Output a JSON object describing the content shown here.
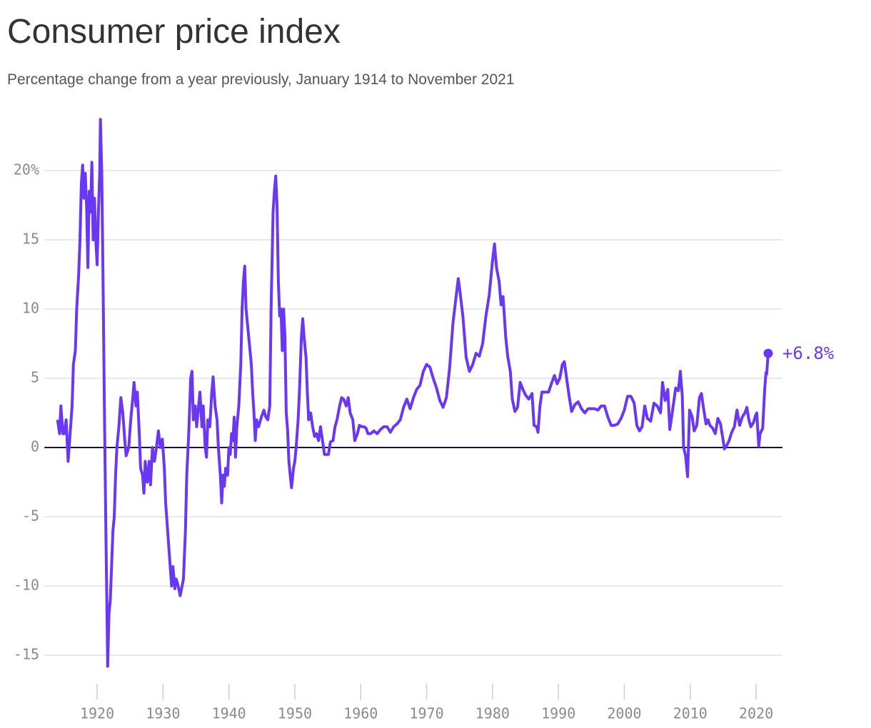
{
  "chart_data": {
    "type": "line",
    "title": "Consumer price index",
    "subtitle": "Percentage change from a year previously, January 1914 to November 2021",
    "end_label": "+6.8%",
    "color": "#6a38f2",
    "grid": true,
    "xlim": [
      1912,
      2024
    ],
    "xticks": [
      1920,
      1930,
      1940,
      1950,
      1960,
      1970,
      1980,
      1990,
      2000,
      2010,
      2020
    ],
    "ylim": [
      -17,
      24
    ],
    "yticks": [
      {
        "value": 20,
        "label": "20%"
      },
      15,
      10,
      5,
      0,
      -5,
      -10,
      -15
    ],
    "x": [
      1914.0,
      1914.3,
      1914.5,
      1914.8,
      1915.0,
      1915.3,
      1915.6,
      1915.9,
      1916.2,
      1916.4,
      1916.7,
      1916.9,
      1917.2,
      1917.4,
      1917.6,
      1917.8,
      1918.0,
      1918.2,
      1918.4,
      1918.6,
      1918.8,
      1919.0,
      1919.2,
      1919.4,
      1919.6,
      1919.8,
      1920.0,
      1920.2,
      1920.4,
      1920.5,
      1920.7,
      1920.9,
      1921.1,
      1921.3,
      1921.5,
      1921.6,
      1921.8,
      1922.0,
      1922.2,
      1922.4,
      1922.6,
      1922.8,
      1923.0,
      1923.3,
      1923.6,
      1923.9,
      1924.2,
      1924.4,
      1924.8,
      1925.1,
      1925.4,
      1925.6,
      1925.9,
      1926.1,
      1926.4,
      1926.6,
      1926.9,
      1927.1,
      1927.3,
      1927.6,
      1927.9,
      1928.1,
      1928.4,
      1928.7,
      1929.0,
      1929.3,
      1929.6,
      1929.9,
      1930.2,
      1930.4,
      1930.7,
      1931.0,
      1931.3,
      1931.5,
      1931.8,
      1932.0,
      1932.3,
      1932.6,
      1932.9,
      1933.1,
      1933.4,
      1933.6,
      1933.9,
      1934.2,
      1934.4,
      1934.6,
      1934.9,
      1935.1,
      1935.4,
      1935.6,
      1935.9,
      1936.1,
      1936.4,
      1936.6,
      1936.8,
      1937.1,
      1937.4,
      1937.6,
      1937.9,
      1938.2,
      1938.4,
      1938.7,
      1938.9,
      1939.1,
      1939.3,
      1939.5,
      1939.8,
      1940.0,
      1940.2,
      1940.4,
      1940.6,
      1940.8,
      1941.0,
      1941.2,
      1941.5,
      1941.8,
      1942.0,
      1942.2,
      1942.4,
      1942.6,
      1942.8,
      1943.0,
      1943.2,
      1943.4,
      1943.6,
      1943.8,
      1944.0,
      1944.2,
      1944.5,
      1944.8,
      1945.0,
      1945.3,
      1945.6,
      1945.9,
      1946.2,
      1946.4,
      1946.7,
      1946.9,
      1947.1,
      1947.3,
      1947.5,
      1947.7,
      1947.9,
      1948.1,
      1948.3,
      1948.5,
      1948.7,
      1948.9,
      1949.1,
      1949.3,
      1949.5,
      1949.8,
      1950.0,
      1950.2,
      1950.5,
      1950.7,
      1951.0,
      1951.2,
      1951.4,
      1951.7,
      1951.9,
      1952.1,
      1952.4,
      1952.7,
      1953.0,
      1953.3,
      1953.6,
      1953.9,
      1954.2,
      1954.5,
      1954.8,
      1955.1,
      1955.4,
      1955.8,
      1956.1,
      1956.4,
      1956.8,
      1957.1,
      1957.4,
      1957.8,
      1958.1,
      1958.4,
      1958.8,
      1959.1,
      1959.5,
      1959.8,
      1960.2,
      1960.5,
      1960.8,
      1961.1,
      1961.5,
      1962.0,
      1962.5,
      1963.0,
      1963.5,
      1964.0,
      1964.5,
      1965.0,
      1965.5,
      1966.0,
      1966.5,
      1967.0,
      1967.5,
      1968.0,
      1968.5,
      1969.0,
      1969.5,
      1970.0,
      1970.5,
      1971.0,
      1971.5,
      1972.0,
      1972.5,
      1973.0,
      1973.5,
      1974.0,
      1974.5,
      1974.8,
      1975.0,
      1975.5,
      1976.0,
      1976.5,
      1977.0,
      1977.5,
      1978.0,
      1978.5,
      1979.0,
      1979.5,
      1980.0,
      1980.3,
      1980.6,
      1981.0,
      1981.3,
      1981.6,
      1982.0,
      1982.3,
      1982.7,
      1983.0,
      1983.4,
      1983.8,
      1984.2,
      1984.6,
      1985.0,
      1985.5,
      1986.0,
      1986.3,
      1986.7,
      1986.9,
      1987.2,
      1987.5,
      1988.0,
      1988.5,
      1989.0,
      1989.4,
      1989.8,
      1990.2,
      1990.6,
      1990.9,
      1991.3,
      1991.6,
      1992.0,
      1992.5,
      1993.0,
      1993.5,
      1994.0,
      1994.5,
      1995.0,
      1995.5,
      1996.0,
      1996.5,
      1997.0,
      1997.5,
      1998.0,
      1998.5,
      1999.0,
      1999.5,
      2000.0,
      2000.5,
      2001.0,
      2001.5,
      2001.9,
      2002.3,
      2002.7,
      2003.1,
      2003.5,
      2004.0,
      2004.5,
      2005.0,
      2005.5,
      2005.8,
      2006.2,
      2006.6,
      2006.9,
      2007.3,
      2007.8,
      2008.2,
      2008.5,
      2008.8,
      2009.0,
      2009.3,
      2009.6,
      2009.9,
      2010.3,
      2010.6,
      2011.0,
      2011.4,
      2011.7,
      2012.0,
      2012.4,
      2012.7,
      2013.0,
      2013.4,
      2013.8,
      2014.2,
      2014.6,
      2014.9,
      2015.2,
      2015.6,
      2015.9,
      2016.3,
      2016.7,
      2017.1,
      2017.5,
      2017.9,
      2018.3,
      2018.6,
      2018.9,
      2019.2,
      2019.6,
      2019.9,
      2020.1,
      2020.4,
      2020.6,
      2021.0,
      2021.3,
      2021.5,
      2021.6,
      2021.83
    ],
    "values": [
      2,
      1,
      3,
      1,
      1,
      2,
      -1,
      1,
      3,
      6,
      7,
      10,
      12.5,
      15,
      19,
      20.4,
      18,
      19.8,
      17.5,
      13,
      18.5,
      17,
      20.6,
      15,
      18,
      15,
      13.2,
      17,
      20,
      23.7,
      20,
      12,
      3,
      -5,
      -12,
      -15.8,
      -12,
      -11,
      -8.5,
      -6,
      -5,
      -2,
      0,
      1.5,
      3.6,
      2.5,
      0.5,
      -0.6,
      0,
      2,
      3.5,
      4.7,
      3,
      4,
      1,
      -1.5,
      -2,
      -3.3,
      -1,
      -2.5,
      -1,
      -2.7,
      0,
      -1,
      0,
      1.2,
      0,
      0.6,
      -1.5,
      -4,
      -6,
      -8,
      -10,
      -8.6,
      -10.2,
      -9.5,
      -10,
      -10.7,
      -10,
      -9.5,
      -6,
      -2,
      1,
      5,
      5.5,
      2,
      3,
      1.5,
      3,
      4,
      1.5,
      3,
      0,
      -0.7,
      2,
      1.5,
      4,
      5.1,
      3,
      2,
      0,
      -2,
      -4,
      -2,
      -2.8,
      -1.5,
      -2,
      0,
      -0.5,
      1,
      0.5,
      2.2,
      -0.7,
      1.5,
      3,
      6,
      10,
      12,
      13.1,
      10,
      9,
      8,
      7,
      6,
      4,
      2.5,
      0.5,
      2,
      1.5,
      2,
      2.3,
      2.7,
      2.2,
      2,
      3,
      10,
      17,
      18.5,
      19.6,
      17.5,
      12,
      9.5,
      10,
      7,
      10,
      8,
      2.5,
      1.3,
      -1,
      -2,
      -2.9,
      -1.5,
      -1,
      0,
      2,
      4,
      8,
      9.3,
      8,
      6.5,
      4,
      2,
      2.5,
      1.5,
      0.8,
      1,
      0.5,
      1.5,
      0.5,
      -0.5,
      -0.5,
      -0.5,
      0.4,
      0.5,
      1.5,
      2,
      3,
      3.6,
      3.5,
      3,
      3.6,
      2.5,
      2,
      0.5,
      1,
      1.6,
      1.5,
      1.5,
      1.4,
      1,
      1,
      1.2,
      1,
      1.3,
      1.5,
      1.5,
      1.1,
      1.5,
      1.7,
      2,
      2.9,
      3.5,
      2.8,
      3.6,
      4.2,
      4.5,
      5.5,
      6,
      5.8,
      5,
      4.3,
      3.4,
      2.9,
      3.6,
      5.8,
      9,
      11,
      12.2,
      11.5,
      9.5,
      6.5,
      5.5,
      6,
      6.8,
      6.6,
      7.5,
      9.5,
      11,
      13.5,
      14.7,
      13,
      12,
      10.3,
      10.9,
      8,
      6.6,
      5.5,
      3.5,
      2.6,
      2.9,
      4.7,
      4.2,
      3.8,
      3.5,
      3.9,
      1.6,
      1.5,
      1.1,
      3,
      4,
      4,
      4,
      4.7,
      5.2,
      4.6,
      5,
      6,
      6.2,
      4.8,
      3.8,
      2.6,
      3.1,
      3.3,
      2.8,
      2.5,
      2.8,
      2.8,
      2.8,
      2.7,
      3,
      3,
      2.2,
      1.6,
      1.6,
      1.7,
      2.1,
      2.7,
      3.7,
      3.7,
      3.2,
      1.6,
      1.2,
      1.5,
      3,
      2.1,
      1.9,
      3.2,
      3,
      2.5,
      4.7,
      3.4,
      4.2,
      1.3,
      2.6,
      4.3,
      4.1,
      5.5,
      3.7,
      0,
      -0.6,
      -2.1,
      2.7,
      2.2,
      1.2,
      1.6,
      3.6,
      3.9,
      2.9,
      1.7,
      2,
      1.6,
      1.4,
      1,
      2.1,
      1.7,
      0.8,
      -0.1,
      0.2,
      0.5,
      1.1,
      1.5,
      2.7,
      1.6,
      2.2,
      2.5,
      2.9,
      2,
      1.5,
      1.8,
      2.3,
      2.5,
      0.1,
      1,
      1.4,
      4.2,
      5.4,
      5.3,
      6.8
    ]
  }
}
